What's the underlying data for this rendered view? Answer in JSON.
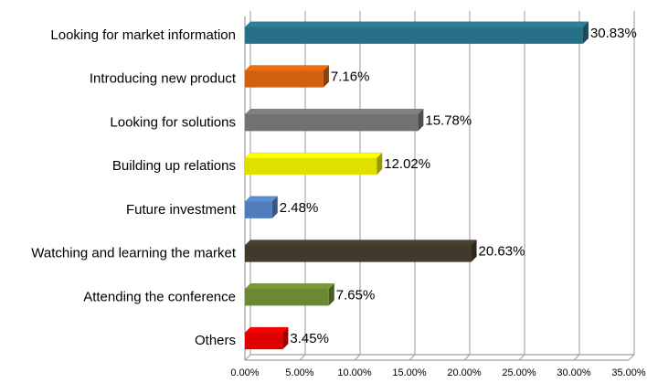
{
  "chart_data": {
    "type": "bar",
    "orientation": "horizontal",
    "categories": [
      "Looking for market information",
      "Introducing new product",
      "Looking for solutions",
      "Building up relations",
      "Future investment",
      "Watching and learning the market",
      "Attending the conference",
      "Others"
    ],
    "values": [
      30.83,
      7.16,
      15.78,
      12.02,
      2.48,
      20.63,
      7.65,
      3.45
    ],
    "value_labels": [
      "30.83%",
      "7.16%",
      "15.78%",
      "12.02%",
      "2.48%",
      "20.63%",
      "7.65%",
      "3.45%"
    ],
    "colors": [
      "#2e7f99",
      "#ed6d12",
      "#808080",
      "#ffff00",
      "#5b8fd6",
      "#4a4231",
      "#7a9a3a",
      "#ff0000"
    ],
    "xlim": [
      0,
      35
    ],
    "xticks": [
      {
        "value": 0,
        "label": "0.00%"
      },
      {
        "value": 5,
        "label": "5.00%"
      },
      {
        "value": 10,
        "label": "10.00%"
      },
      {
        "value": 15,
        "label": "15.00%"
      },
      {
        "value": 20,
        "label": "20.00%"
      },
      {
        "value": 25,
        "label": "25.00%"
      },
      {
        "value": 30,
        "label": "30.00%"
      },
      {
        "value": 35,
        "label": "35.00%"
      }
    ],
    "grid": true
  }
}
